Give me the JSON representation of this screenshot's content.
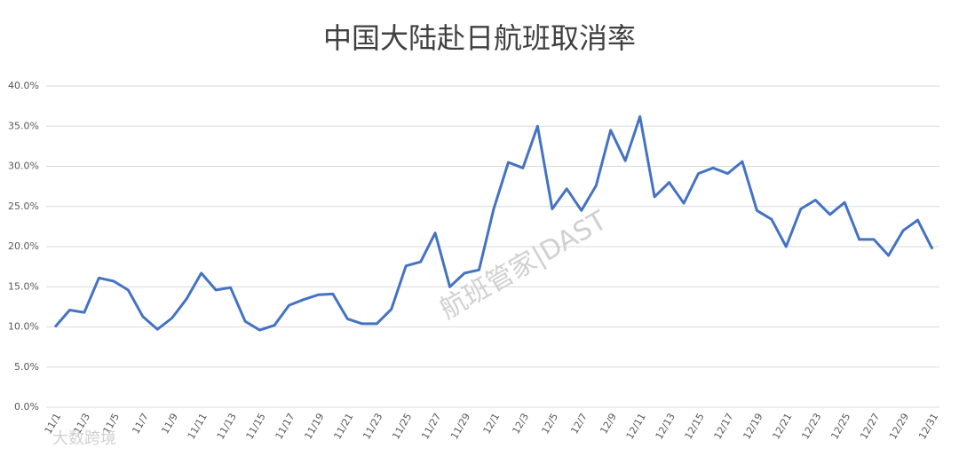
{
  "chart_data": {
    "type": "line",
    "title": "中国大陆赴日航班取消率",
    "categories": [
      "11/1",
      null,
      "11/3",
      null,
      "11/5",
      null,
      "11/7",
      null,
      "11/9",
      null,
      "11/11",
      null,
      "11/13",
      null,
      "11/15",
      null,
      "11/17",
      null,
      "11/19",
      null,
      "11/21",
      null,
      "11/23",
      null,
      "11/25",
      null,
      "11/27",
      null,
      "11/29",
      null,
      "12/1",
      null,
      "12/3",
      null,
      "12/5",
      null,
      "12/7",
      null,
      "12/9",
      null,
      "12/11",
      null,
      "12/13",
      null,
      "12/15",
      null,
      "12/17",
      null,
      "12/19",
      null,
      "12/21",
      null,
      "12/23",
      null,
      "12/25",
      null,
      "12/27",
      null,
      "12/29",
      null,
      "12/31"
    ],
    "series": [
      {
        "color": "#4472c4",
        "values": [
          10.0,
          12.1,
          11.8,
          16.1,
          15.7,
          14.6,
          11.3,
          9.7,
          11.1,
          13.5,
          16.7,
          14.6,
          14.9,
          10.7,
          9.6,
          10.2,
          12.7,
          13.4,
          14.0,
          14.1,
          11.0,
          10.4,
          10.4,
          12.2,
          17.6,
          18.1,
          21.7,
          15.0,
          16.7,
          17.1,
          24.7,
          30.5,
          29.8,
          35.0,
          24.7,
          27.2,
          24.5,
          27.6,
          34.5,
          30.7,
          36.2,
          26.2,
          28.0,
          25.4,
          29.1,
          29.8,
          29.1,
          30.6,
          24.5,
          23.4,
          20.0,
          24.7,
          25.8,
          24.0,
          25.5,
          20.9,
          20.9,
          18.9,
          22.0,
          23.3,
          19.7
        ]
      }
    ],
    "ylim": [
      0,
      40
    ],
    "yticks": [
      {
        "value": 0,
        "label": "0.0%"
      },
      {
        "value": 5,
        "label": "5.0%"
      },
      {
        "value": 10,
        "label": "10.0%"
      },
      {
        "value": 15,
        "label": "15.0%"
      },
      {
        "value": 20,
        "label": "20.0%"
      },
      {
        "value": 25,
        "label": "25.0%"
      },
      {
        "value": 30,
        "label": "30.0%"
      },
      {
        "value": 35,
        "label": "35.0%"
      },
      {
        "value": 40,
        "label": "40.0%"
      }
    ],
    "grid": true,
    "watermarks": [
      "航班管家|DAST",
      "大数跨境"
    ]
  }
}
